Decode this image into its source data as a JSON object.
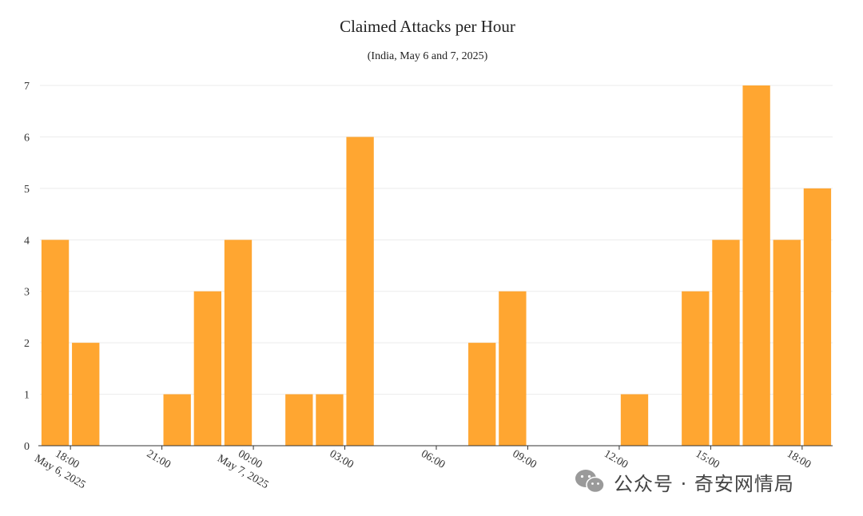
{
  "chart_data": {
    "type": "bar",
    "title": "Claimed Attacks per Hour",
    "subtitle": "(India, May 6 and 7, 2025)",
    "xlabel": "",
    "ylabel": "",
    "ylim": [
      0,
      7
    ],
    "yticks": [
      0,
      1,
      2,
      3,
      4,
      5,
      6,
      7
    ],
    "grid": true,
    "legend": "none",
    "bar_color": "#FFA631",
    "categories": [
      "2025-05-06 17:00",
      "2025-05-06 18:00",
      "2025-05-06 19:00",
      "2025-05-06 20:00",
      "2025-05-06 21:00",
      "2025-05-06 22:00",
      "2025-05-06 23:00",
      "2025-05-07 00:00",
      "2025-05-07 01:00",
      "2025-05-07 02:00",
      "2025-05-07 03:00",
      "2025-05-07 04:00",
      "2025-05-07 05:00",
      "2025-05-07 06:00",
      "2025-05-07 07:00",
      "2025-05-07 08:00",
      "2025-05-07 09:00",
      "2025-05-07 10:00",
      "2025-05-07 11:00",
      "2025-05-07 12:00",
      "2025-05-07 13:00",
      "2025-05-07 14:00",
      "2025-05-07 15:00",
      "2025-05-07 16:00",
      "2025-05-07 17:00",
      "2025-05-07 18:00"
    ],
    "values": [
      4,
      2,
      0,
      0,
      1,
      3,
      4,
      0,
      1,
      1,
      6,
      0,
      0,
      0,
      2,
      3,
      0,
      0,
      0,
      1,
      0,
      3,
      4,
      7,
      4,
      5
    ],
    "x_tick_labels": [
      {
        "at": "2025-05-06 18:00",
        "lines": [
          "18:00",
          "May 6, 2025"
        ]
      },
      {
        "at": "2025-05-06 21:00",
        "lines": [
          "21:00"
        ]
      },
      {
        "at": "2025-05-07 00:00",
        "lines": [
          "00:00",
          "May 7, 2025"
        ]
      },
      {
        "at": "2025-05-07 03:00",
        "lines": [
          "03:00"
        ]
      },
      {
        "at": "2025-05-07 06:00",
        "lines": [
          "06:00"
        ]
      },
      {
        "at": "2025-05-07 09:00",
        "lines": [
          "09:00"
        ]
      },
      {
        "at": "2025-05-07 12:00",
        "lines": [
          "12:00"
        ]
      },
      {
        "at": "2025-05-07 15:00",
        "lines": [
          "15:00"
        ]
      },
      {
        "at": "2025-05-07 18:00",
        "lines": [
          "18:00"
        ]
      }
    ]
  },
  "watermark": {
    "text": "公众号 · 奇安网情局",
    "icon": "wechat-icon"
  }
}
